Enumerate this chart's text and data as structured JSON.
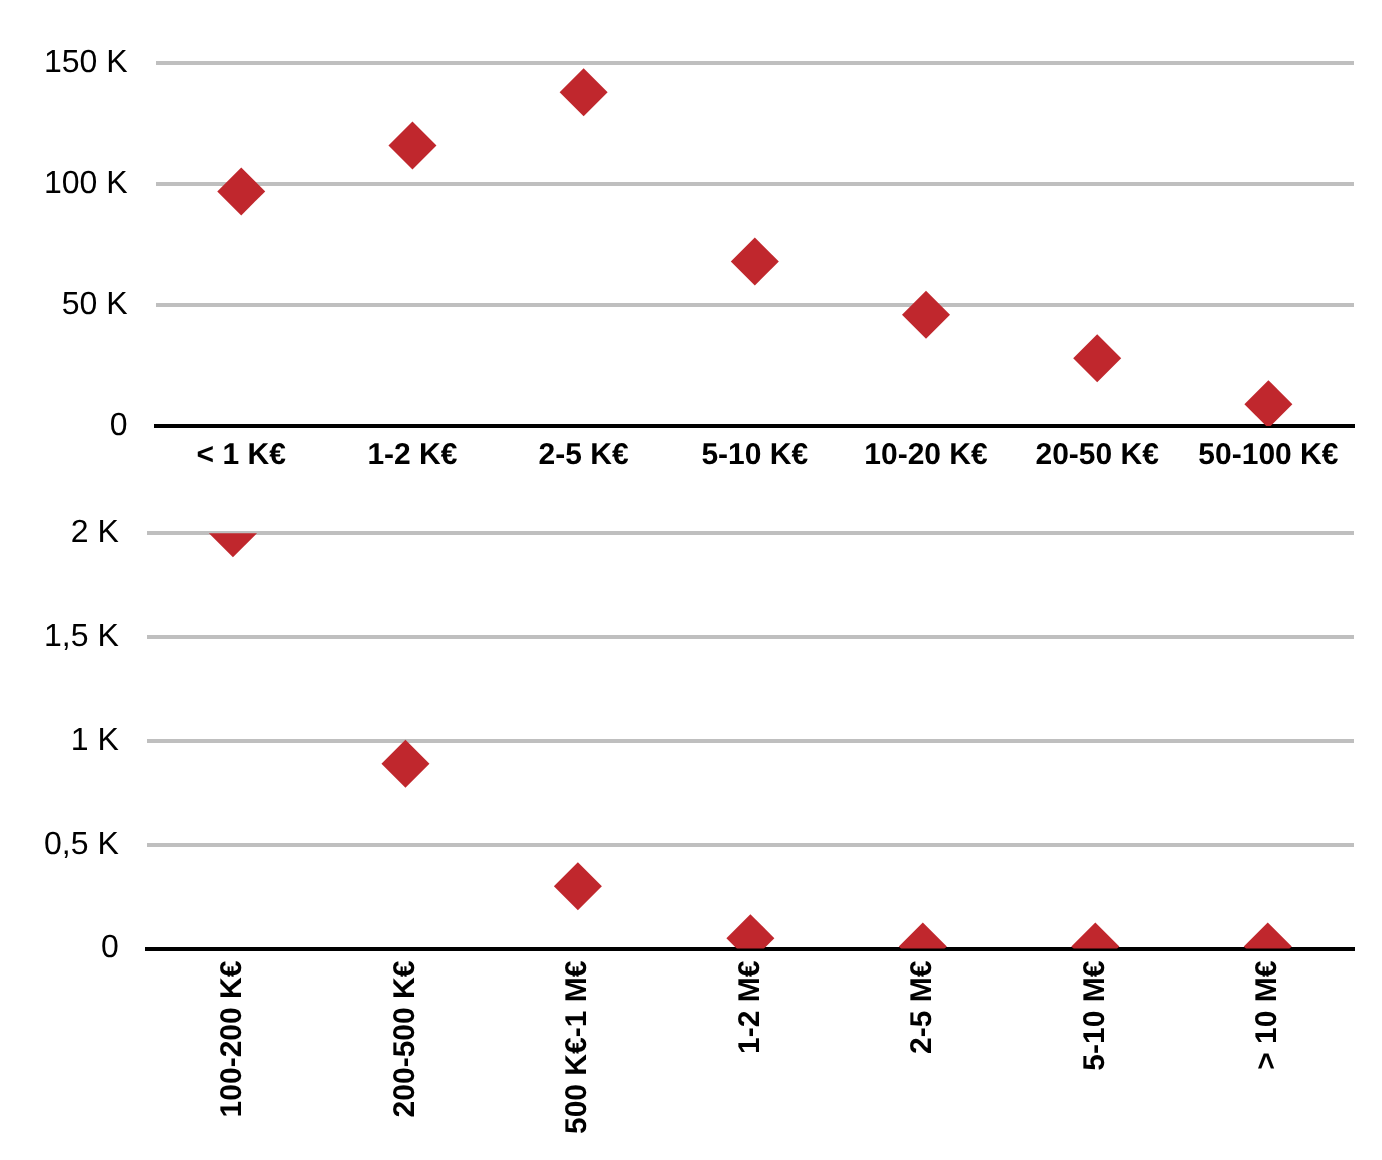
{
  "chart_data": [
    {
      "type": "scatter",
      "categories": [
        "< 1 K€",
        "1-2 K€",
        "2-5 K€",
        "5-10 K€",
        "10-20 K€",
        "20-50 K€",
        "50-100 K€"
      ],
      "series": [
        {
          "color": "#c0272d",
          "values": [
            97,
            116,
            138,
            68,
            46,
            28,
            9
          ]
        }
      ],
      "ylim": [
        0,
        150
      ],
      "yticks": [
        {
          "value": 0,
          "label": "0"
        },
        {
          "value": 50,
          "label": "50 K"
        },
        {
          "value": 100,
          "label": "100 K"
        },
        {
          "value": 150,
          "label": "150 K"
        }
      ],
      "grid": "y",
      "marker": "diamond",
      "legend": false
    },
    {
      "type": "scatter",
      "categories": [
        "100-200 K€",
        "200-500 K€",
        "500 K€-1 M€",
        "1-2 M€",
        "2-5 M€",
        "5-10 M€",
        "> 10 M€"
      ],
      "series": [
        {
          "color": "#c0272d",
          "values": [
            2,
            0.89,
            0.3,
            0.05,
            0.01,
            0.01,
            0.01
          ]
        }
      ],
      "ylim": [
        0,
        2
      ],
      "yticks": [
        {
          "value": 0,
          "label": "0"
        },
        {
          "value": 0.5,
          "label": "0,5 K"
        },
        {
          "value": 1,
          "label": "1 K"
        },
        {
          "value": 1.5,
          "label": "1,5 K"
        },
        {
          "value": 2,
          "label": "2 K"
        }
      ],
      "grid": "y",
      "marker": "diamond",
      "legend": false
    }
  ]
}
